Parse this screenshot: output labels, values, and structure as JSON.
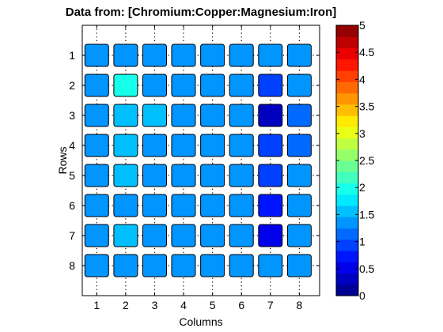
{
  "chart_data": {
    "type": "heatmap",
    "title": "Data from: [Chromium:Copper:Magnesium:Iron]",
    "xlabel": "Columns",
    "ylabel": "Rows",
    "x_ticks": [
      "1",
      "2",
      "3",
      "4",
      "5",
      "6",
      "7",
      "8"
    ],
    "y_ticks": [
      "1",
      "2",
      "3",
      "4",
      "5",
      "6",
      "7",
      "8"
    ],
    "colorbar": {
      "min": 0,
      "max": 5,
      "ticks": [
        "0",
        "0.5",
        "1",
        "1.5",
        "2",
        "2.5",
        "3",
        "3.5",
        "4",
        "4.5",
        "5"
      ],
      "levels": 24
    },
    "grid": true,
    "values": [
      [
        1.3,
        1.3,
        1.3,
        1.3,
        1.3,
        1.3,
        1.3,
        1.3
      ],
      [
        1.3,
        1.95,
        1.3,
        1.3,
        1.3,
        1.3,
        0.85,
        1.3
      ],
      [
        1.3,
        1.5,
        1.55,
        1.3,
        1.3,
        1.3,
        0.3,
        1.15
      ],
      [
        1.3,
        1.5,
        1.3,
        1.3,
        1.3,
        1.3,
        0.85,
        1.15
      ],
      [
        1.3,
        1.65,
        1.3,
        1.3,
        1.3,
        1.3,
        0.85,
        1.3
      ],
      [
        1.3,
        1.45,
        1.3,
        1.3,
        1.3,
        1.3,
        0.65,
        1.3
      ],
      [
        1.3,
        1.65,
        1.3,
        1.3,
        1.3,
        1.3,
        0.6,
        1.3
      ],
      [
        1.3,
        1.3,
        1.3,
        1.3,
        1.3,
        1.3,
        1.3,
        1.3
      ]
    ]
  }
}
